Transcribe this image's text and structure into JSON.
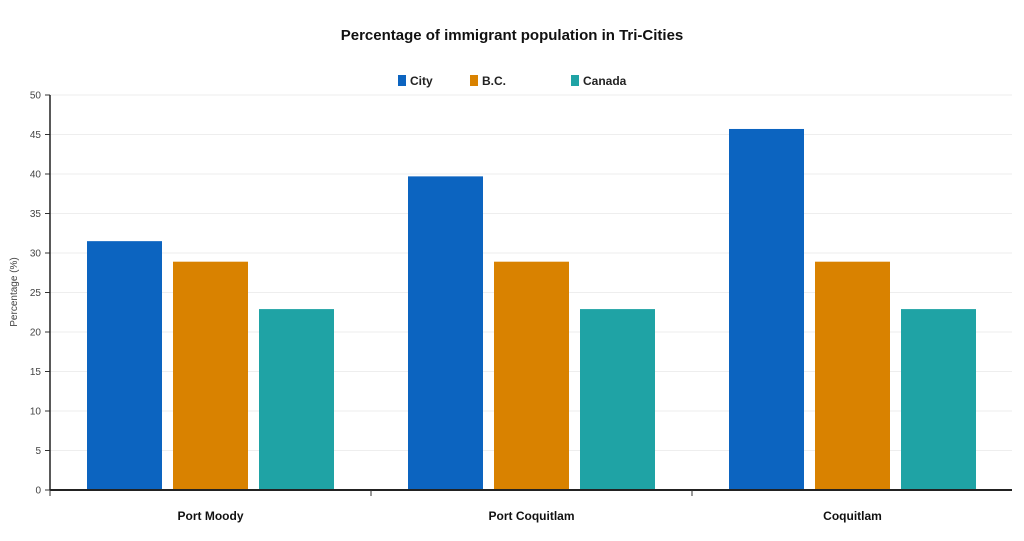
{
  "chart_data": {
    "type": "bar",
    "title": "Percentage of immigrant population in Tri-Cities",
    "xlabel": "",
    "ylabel": "Percentage (%)",
    "ylim": [
      0,
      50
    ],
    "yticks": [
      0,
      5,
      10,
      15,
      20,
      25,
      30,
      35,
      40,
      45,
      50
    ],
    "grid": true,
    "legend_position": "top",
    "categories": [
      "Port Moody",
      "Port Coquitlam",
      "Coquitlam"
    ],
    "series": [
      {
        "name": "City",
        "color": "#0c64c0",
        "values": [
          31.5,
          39.7,
          45.7
        ]
      },
      {
        "name": "B.C.",
        "color": "#d98200",
        "values": [
          28.9,
          28.9,
          28.9
        ]
      },
      {
        "name": "Canada",
        "color": "#1fa3a5",
        "values": [
          22.9,
          22.9,
          22.9
        ]
      }
    ]
  }
}
